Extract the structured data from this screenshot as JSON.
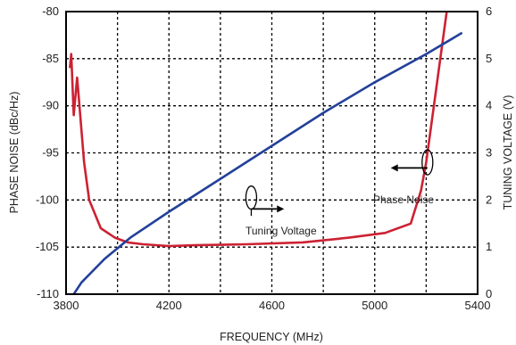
{
  "chart_data": {
    "type": "line",
    "title": "",
    "xlabel": "FREQUENCY (MHz)",
    "ylabel_left": "PHASE NOISE (dBc/Hz)",
    "ylabel_right": "TUNING VOLTAGE (V)",
    "xlim": [
      3800,
      5400
    ],
    "ylim_left": [
      -110,
      -80
    ],
    "ylim_right": [
      0,
      6
    ],
    "xticks": [
      3800,
      4200,
      4600,
      5000,
      5400
    ],
    "yticks_left": [
      -110,
      -105,
      -100,
      -95,
      -90,
      -85,
      -80
    ],
    "yticks_right": [
      0,
      1,
      2,
      3,
      4,
      5,
      6
    ],
    "grid": "dashed",
    "colors": {
      "phase_noise": "#cc2233",
      "tuning_voltage": "#23409a"
    },
    "series": [
      {
        "axis": "left",
        "x": [
          3815,
          3820,
          3830,
          3843,
          3870,
          3890,
          3935,
          3990,
          4040,
          4100,
          4200,
          4300,
          4500,
          4720,
          4900,
          5040,
          5140,
          5180,
          5200,
          5225,
          5255,
          5280
        ],
        "y": [
          -86,
          -84.5,
          -91,
          -87,
          -96,
          -100,
          -103,
          -104,
          -104.5,
          -104.7,
          -104.9,
          -104.8,
          -104.7,
          -104.5,
          -104,
          -103.5,
          -102.5,
          -99,
          -96,
          -91,
          -85,
          -80
        ]
      },
      {
        "axis": "right",
        "x": [
          3830,
          3860,
          3950,
          4050,
          4200,
          4400,
          4600,
          4800,
          5000,
          5200,
          5340
        ],
        "y": [
          0,
          0.25,
          0.75,
          1.2,
          1.75,
          2.45,
          3.15,
          3.85,
          4.5,
          5.1,
          5.55
        ]
      }
    ],
    "annotations": [
      {
        "text": "Tuning Voltage",
        "at_x": 4600,
        "at_v": 1.7
      },
      {
        "text": "Phase Noise",
        "at_x": 5000,
        "at_v": 2.2
      }
    ]
  }
}
